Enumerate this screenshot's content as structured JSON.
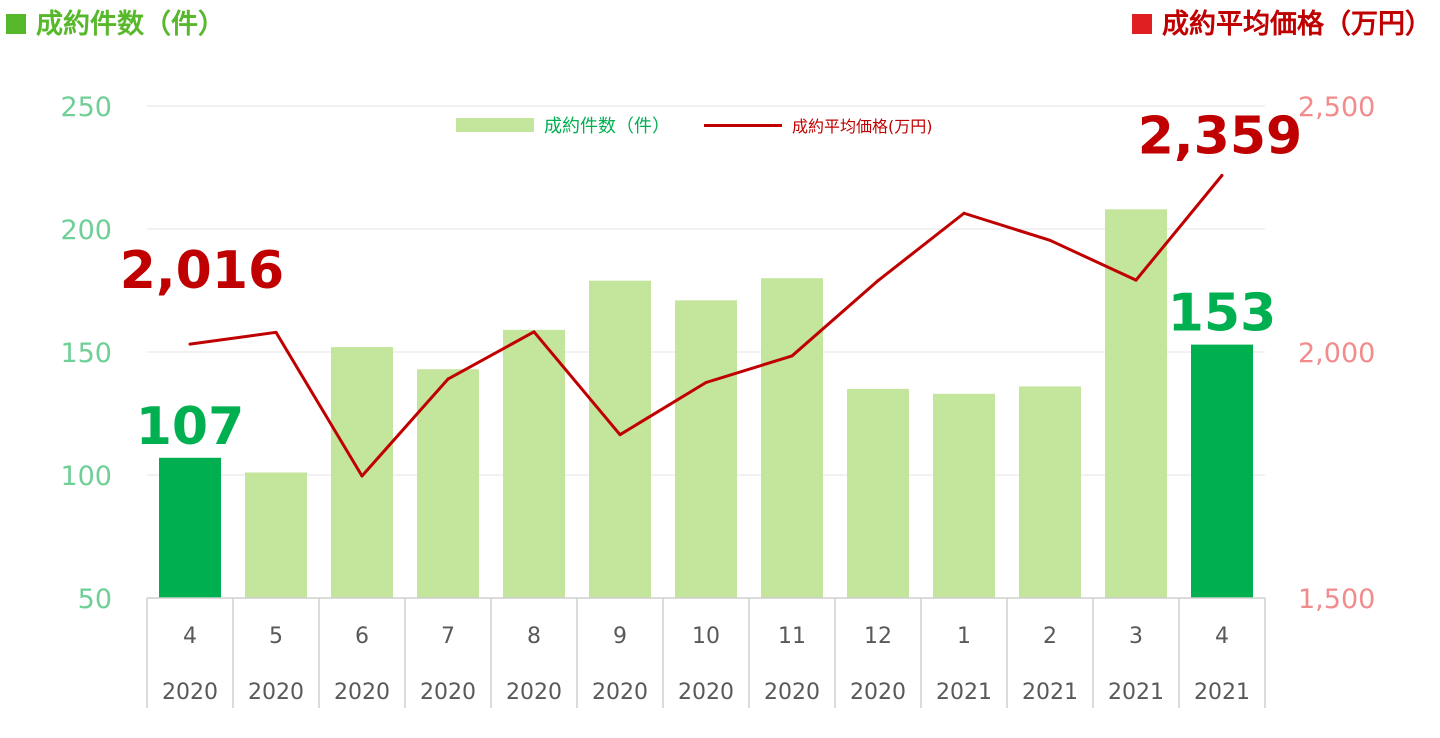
{
  "header": {
    "left_title": "成約件数（件）",
    "right_title": "成約平均価格（万円）"
  },
  "colors": {
    "bar": "#c3e59c",
    "bar_highlight": "#00b050",
    "line": "#c00000",
    "left_axis_text": "#6fcf97",
    "right_axis_text": "#f28b8b",
    "left_title": "#58b82b",
    "right_title": "#c00000",
    "left_marker": "#58b82b",
    "right_marker": "#e02020",
    "grid": "#e3e3e3"
  },
  "chart_data": {
    "type": "bar",
    "categories": [
      {
        "month": "4",
        "year": "2020"
      },
      {
        "month": "5",
        "year": "2020"
      },
      {
        "month": "6",
        "year": "2020"
      },
      {
        "month": "7",
        "year": "2020"
      },
      {
        "month": "8",
        "year": "2020"
      },
      {
        "month": "9",
        "year": "2020"
      },
      {
        "month": "10",
        "year": "2020"
      },
      {
        "month": "11",
        "year": "2020"
      },
      {
        "month": "12",
        "year": "2020"
      },
      {
        "month": "1",
        "year": "2021"
      },
      {
        "month": "2",
        "year": "2021"
      },
      {
        "month": "3",
        "year": "2021"
      },
      {
        "month": "4",
        "year": "2021"
      }
    ],
    "series": [
      {
        "name": "成約件数（件）",
        "type": "bar",
        "axis": "left",
        "values": [
          107,
          101,
          152,
          143,
          159,
          179,
          171,
          180,
          135,
          133,
          136,
          208,
          153
        ],
        "highlight_indices": [
          0,
          12
        ]
      },
      {
        "name": "成約平均価格(万円)",
        "type": "line",
        "axis": "right",
        "values": [
          2016,
          2040,
          1748,
          1945,
          2041,
          1832,
          1938,
          1992,
          2145,
          2282,
          2227,
          2146,
          2359
        ]
      }
    ],
    "left_axis": {
      "ylim": [
        50,
        250
      ],
      "ticks": [
        "50",
        "100",
        "150",
        "200",
        "250"
      ]
    },
    "right_axis": {
      "ylim": [
        1500,
        2500
      ],
      "ticks": [
        "1,500",
        "2,000",
        "2,500"
      ]
    },
    "annotations": [
      {
        "series": 0,
        "index": 0,
        "text": "107"
      },
      {
        "series": 0,
        "index": 12,
        "text": "153"
      },
      {
        "series": 1,
        "index": 0,
        "text": "2,016"
      },
      {
        "series": 1,
        "index": 12,
        "text": "2,359"
      }
    ],
    "grid": true,
    "legend": "top-center"
  }
}
